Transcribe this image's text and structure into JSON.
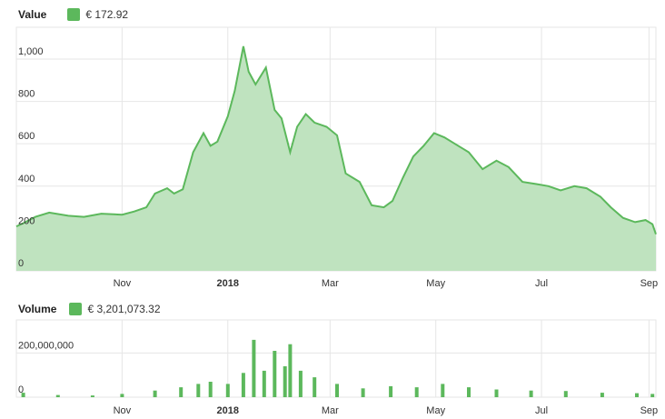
{
  "value_panel": {
    "title": "Value",
    "legend_value": "€  172.92",
    "y_ticks": [
      "0",
      "200",
      "400",
      "600",
      "800",
      "1,000"
    ],
    "y_tick_values": [
      0,
      200,
      400,
      600,
      800,
      1000
    ]
  },
  "volume_panel": {
    "title": "Volume",
    "legend_value": "€  3,201,073.32",
    "y_ticks": [
      "0",
      "200,000,000"
    ],
    "y_tick_values": [
      0,
      200000000
    ]
  },
  "x_axis_labels": [
    {
      "label": "Nov",
      "date": "2017-11-01",
      "bold": false
    },
    {
      "label": "2018",
      "date": "2018-01-01",
      "bold": true
    },
    {
      "label": "Mar",
      "date": "2018-03-01",
      "bold": false
    },
    {
      "label": "May",
      "date": "2018-05-01",
      "bold": false
    },
    {
      "label": "Jul",
      "date": "2018-07-01",
      "bold": false
    },
    {
      "label": "Sep",
      "date": "2018-09-01",
      "bold": false
    }
  ],
  "colors": {
    "line": "#5cb85c",
    "fill": "#bfe3bf",
    "bar": "#5cb85c",
    "grid": "#e6e6e6",
    "axis": "#cccccc"
  },
  "chart_data": [
    {
      "type": "area",
      "title": "Value",
      "series_label": "€  172.92",
      "ylim": [
        0,
        1150
      ],
      "grid": true,
      "x": [
        "2017-09-01",
        "2017-09-05",
        "2017-09-12",
        "2017-09-20",
        "2017-10-01",
        "2017-10-10",
        "2017-10-20",
        "2017-11-01",
        "2017-11-08",
        "2017-11-15",
        "2017-11-20",
        "2017-11-27",
        "2017-12-01",
        "2017-12-06",
        "2017-12-12",
        "2017-12-18",
        "2017-12-22",
        "2017-12-26",
        "2018-01-01",
        "2018-01-05",
        "2018-01-10",
        "2018-01-13",
        "2018-01-17",
        "2018-01-23",
        "2018-01-28",
        "2018-02-01",
        "2018-02-06",
        "2018-02-10",
        "2018-02-15",
        "2018-02-20",
        "2018-02-27",
        "2018-03-05",
        "2018-03-10",
        "2018-03-18",
        "2018-03-25",
        "2018-04-01",
        "2018-04-06",
        "2018-04-12",
        "2018-04-18",
        "2018-04-24",
        "2018-04-30",
        "2018-05-06",
        "2018-05-12",
        "2018-05-20",
        "2018-05-28",
        "2018-06-05",
        "2018-06-12",
        "2018-06-20",
        "2018-06-28",
        "2018-07-05",
        "2018-07-12",
        "2018-07-20",
        "2018-07-27",
        "2018-08-04",
        "2018-08-10",
        "2018-08-17",
        "2018-08-24",
        "2018-08-30",
        "2018-09-03",
        "2018-09-05"
      ],
      "values": [
        210,
        225,
        255,
        275,
        260,
        255,
        270,
        265,
        280,
        300,
        365,
        390,
        365,
        385,
        560,
        650,
        590,
        610,
        730,
        850,
        1060,
        940,
        880,
        960,
        760,
        720,
        560,
        680,
        740,
        700,
        680,
        640,
        460,
        420,
        310,
        300,
        330,
        440,
        540,
        590,
        650,
        630,
        600,
        560,
        480,
        520,
        490,
        420,
        410,
        400,
        380,
        400,
        390,
        350,
        300,
        250,
        230,
        240,
        220,
        172.92
      ],
      "xlabel": "",
      "ylabel": ""
    },
    {
      "type": "bar",
      "title": "Volume",
      "series_label": "€  3,201,073.32",
      "ylim": [
        0,
        350000000
      ],
      "grid": true,
      "x": [
        "2017-09-05",
        "2017-09-25",
        "2017-10-15",
        "2017-11-01",
        "2017-11-20",
        "2017-12-05",
        "2017-12-15",
        "2017-12-22",
        "2018-01-01",
        "2018-01-10",
        "2018-01-16",
        "2018-01-22",
        "2018-01-28",
        "2018-02-03",
        "2018-02-06",
        "2018-02-12",
        "2018-02-20",
        "2018-03-05",
        "2018-03-20",
        "2018-04-05",
        "2018-04-20",
        "2018-05-05",
        "2018-05-20",
        "2018-06-05",
        "2018-06-25",
        "2018-07-15",
        "2018-08-05",
        "2018-08-25",
        "2018-09-03"
      ],
      "values": [
        20000000,
        10000000,
        8000000,
        15000000,
        30000000,
        45000000,
        60000000,
        70000000,
        60000000,
        110000000,
        260000000,
        120000000,
        210000000,
        140000000,
        240000000,
        120000000,
        90000000,
        60000000,
        40000000,
        50000000,
        45000000,
        60000000,
        45000000,
        35000000,
        30000000,
        28000000,
        20000000,
        18000000,
        15000000
      ],
      "xlabel": "",
      "ylabel": ""
    }
  ]
}
